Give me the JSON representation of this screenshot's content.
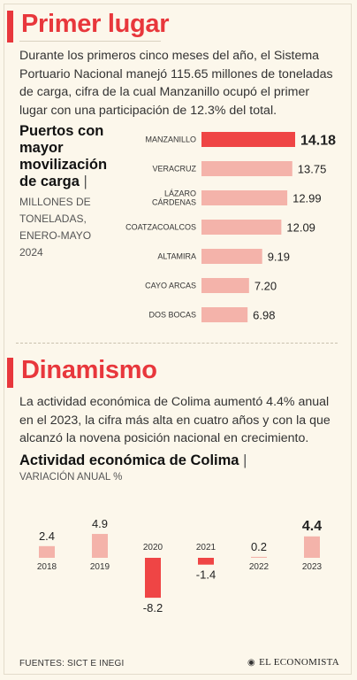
{
  "section1": {
    "title": "Primer lugar",
    "text": "Durante los primeros cinco meses del año, el Sistema Portuario Nacional manejó 115.65 millones de toneladas de carga, cifra de la cual Manzanillo ocupó el primer lugar con una participación de 12.3% del total."
  },
  "section2": {
    "title": "Dinamismo",
    "text": "La actividad económica de Colima aumentó 4.4% anual en el 2023, la cifra más alta en cuatro años y con la que alcanzó la novena posición nacional en crecimiento."
  },
  "footer": {
    "sources": "FUENTES: SICT E INEGI",
    "brand": "EL ECONOMISTA"
  },
  "colors": {
    "accent": "#e8373c",
    "bar_light": "#f4b3aa",
    "bar_dark": "#ef4545",
    "background": "#fcf7eb"
  },
  "chart_data": [
    {
      "type": "bar",
      "orientation": "horizontal",
      "title": "Puertos con mayor movilización de carga",
      "subtitle": "MILLONES DE TONELADAS, ENERO-MAYO 2024",
      "categories": [
        "MANZANILLO",
        "VERACRUZ",
        "LÁZARO CÁRDENAS",
        "COATZACOALCOS",
        "ALTAMIRA",
        "CAYO ARCAS",
        "DOS BOCAS"
      ],
      "values": [
        14.18,
        13.75,
        12.99,
        12.09,
        9.19,
        7.2,
        6.98
      ],
      "value_labels": [
        "14.18",
        "13.75",
        "12.99",
        "12.09",
        "9.19",
        "7.20",
        "6.98"
      ],
      "highlight": "MANZANILLO",
      "xlim": [
        0,
        14.18
      ]
    },
    {
      "type": "bar",
      "orientation": "vertical",
      "title": "Actividad económica de Colima",
      "subtitle": "VARIACIÓN ANUAL %",
      "categories": [
        "2018",
        "2019",
        "2020",
        "2021",
        "2022",
        "2023"
      ],
      "values": [
        2.4,
        4.9,
        -8.2,
        -1.4,
        0.2,
        4.4
      ],
      "value_labels": [
        "2.4",
        "4.9",
        "-8.2",
        "-1.4",
        "0.2",
        "4.4"
      ],
      "highlight": "2023"
    }
  ]
}
